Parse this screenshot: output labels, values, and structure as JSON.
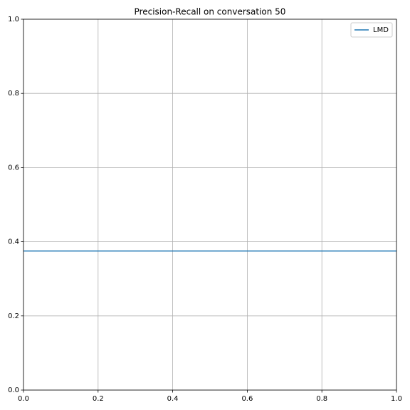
{
  "chart_data": {
    "type": "line",
    "title": "Precision-Recall on conversation 50",
    "x": [
      0,
      1
    ],
    "series": [
      {
        "name": "LMD",
        "color": "#1f77b4",
        "values": [
          0.375,
          0.375
        ]
      }
    ],
    "xlim": [
      0,
      1
    ],
    "ylim": [
      0,
      1
    ],
    "xticks": [
      {
        "value": 0,
        "label": "0.0"
      },
      0.2,
      0.4,
      0.6,
      0.8,
      {
        "value": 1,
        "label": "1.0"
      }
    ],
    "yticks": [
      {
        "value": 0,
        "label": "0.0"
      },
      0.2,
      0.4,
      0.6,
      0.8,
      {
        "value": 1,
        "label": "1.0"
      }
    ],
    "grid": true,
    "legend": "upper right"
  }
}
